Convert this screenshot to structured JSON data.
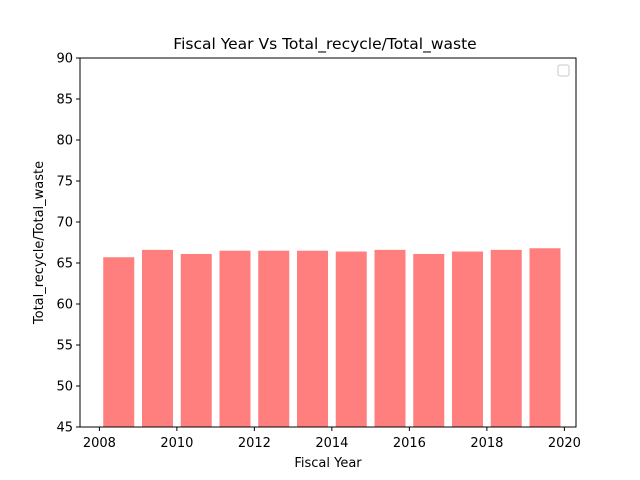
{
  "chart_data": {
    "type": "bar",
    "title": "Fiscal Year Vs Total_recycle/Total_waste",
    "xlabel": "Fiscal Year",
    "ylabel": "Total_recycle/Total_waste",
    "x": [
      2008.5,
      2009.5,
      2010.5,
      2011.5,
      2012.5,
      2013.5,
      2014.5,
      2015.5,
      2016.5,
      2017.5,
      2018.5,
      2019.5
    ],
    "values": [
      65.7,
      66.6,
      66.1,
      66.5,
      66.5,
      66.5,
      66.4,
      66.6,
      66.1,
      66.4,
      66.6,
      66.8
    ],
    "xlim": [
      2007.5,
      2020.3
    ],
    "ylim": [
      45,
      90
    ],
    "xticks": [
      2008,
      2010,
      2012,
      2014,
      2016,
      2018,
      2020
    ],
    "yticks": [
      45,
      50,
      55,
      60,
      65,
      70,
      75,
      80,
      85,
      90
    ],
    "bar_color": "#ff7f7f",
    "legend": "top-right",
    "grid": false
  }
}
